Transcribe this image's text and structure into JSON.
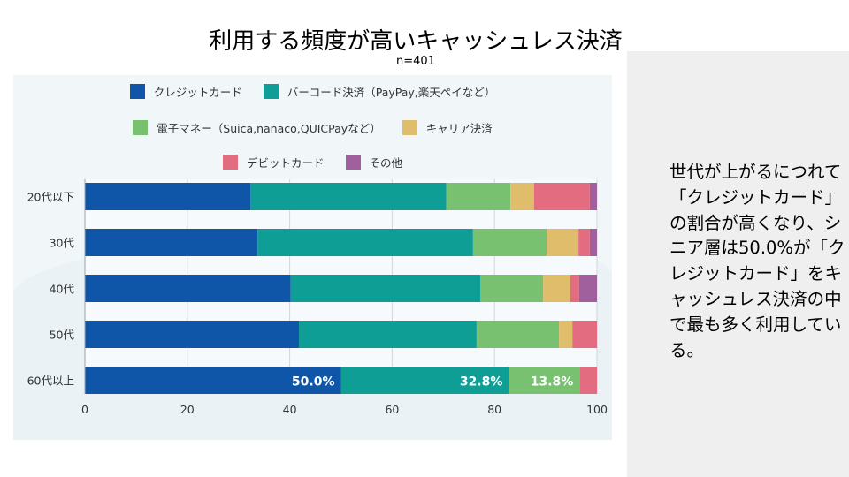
{
  "slide": {
    "title": "利用する頻度が高いキャッシュレス決済",
    "subtitle": "n=401",
    "summary": "世代が上がるにつれて「クレジットカード」の割合が高くなり、シニア層は50.0%が「クレジットカード」をキャッシュレス決済の中で最も多く利用している。"
  },
  "chart_data": {
    "type": "bar",
    "orientation": "horizontal",
    "stacked": true,
    "title": "利用する頻度が高いキャッシュレス決済",
    "subtitle": "n=401",
    "xlabel": "",
    "ylabel": "",
    "xlim": [
      0,
      100
    ],
    "xticks": [
      0,
      20,
      40,
      60,
      80,
      100
    ],
    "grid": true,
    "legend_position": "top-center",
    "categories": [
      "20代以下",
      "30代",
      "40代",
      "50代",
      "60代以上"
    ],
    "series": [
      {
        "name": "クレジットカード",
        "color": "#0f56a8",
        "values": [
          32.3,
          33.7,
          40.2,
          41.8,
          50.0
        ]
      },
      {
        "name": "バーコード決済（PayPay,楽天ペイなど）",
        "color": "#0e9e95",
        "values": [
          38.3,
          42.1,
          37.0,
          34.7,
          32.8
        ]
      },
      {
        "name": "電子マネー（Suica,nanaco,QUICPayなど）",
        "color": "#78c170",
        "values": [
          12.5,
          14.4,
          12.3,
          16.1,
          13.8
        ]
      },
      {
        "name": "キャリア決済",
        "color": "#e0bd6a",
        "values": [
          4.6,
          6.2,
          5.3,
          2.6,
          0
        ]
      },
      {
        "name": "デビットカード",
        "color": "#e36c80",
        "values": [
          10.9,
          2.2,
          1.7,
          4.8,
          3.4
        ]
      },
      {
        "name": "その他",
        "color": "#a0609e",
        "values": [
          1.4,
          1.4,
          3.5,
          0,
          0
        ]
      }
    ],
    "data_labels": [
      {
        "category": "60代以上",
        "series": "クレジットカード",
        "text": "50.0%"
      },
      {
        "category": "60代以上",
        "series": "バーコード決済（PayPay,楽天ペイなど）",
        "text": "32.8%"
      },
      {
        "category": "60代以上",
        "series": "電子マネー（Suica,nanaco,QUICPayなど）",
        "text": "13.8%"
      }
    ]
  }
}
